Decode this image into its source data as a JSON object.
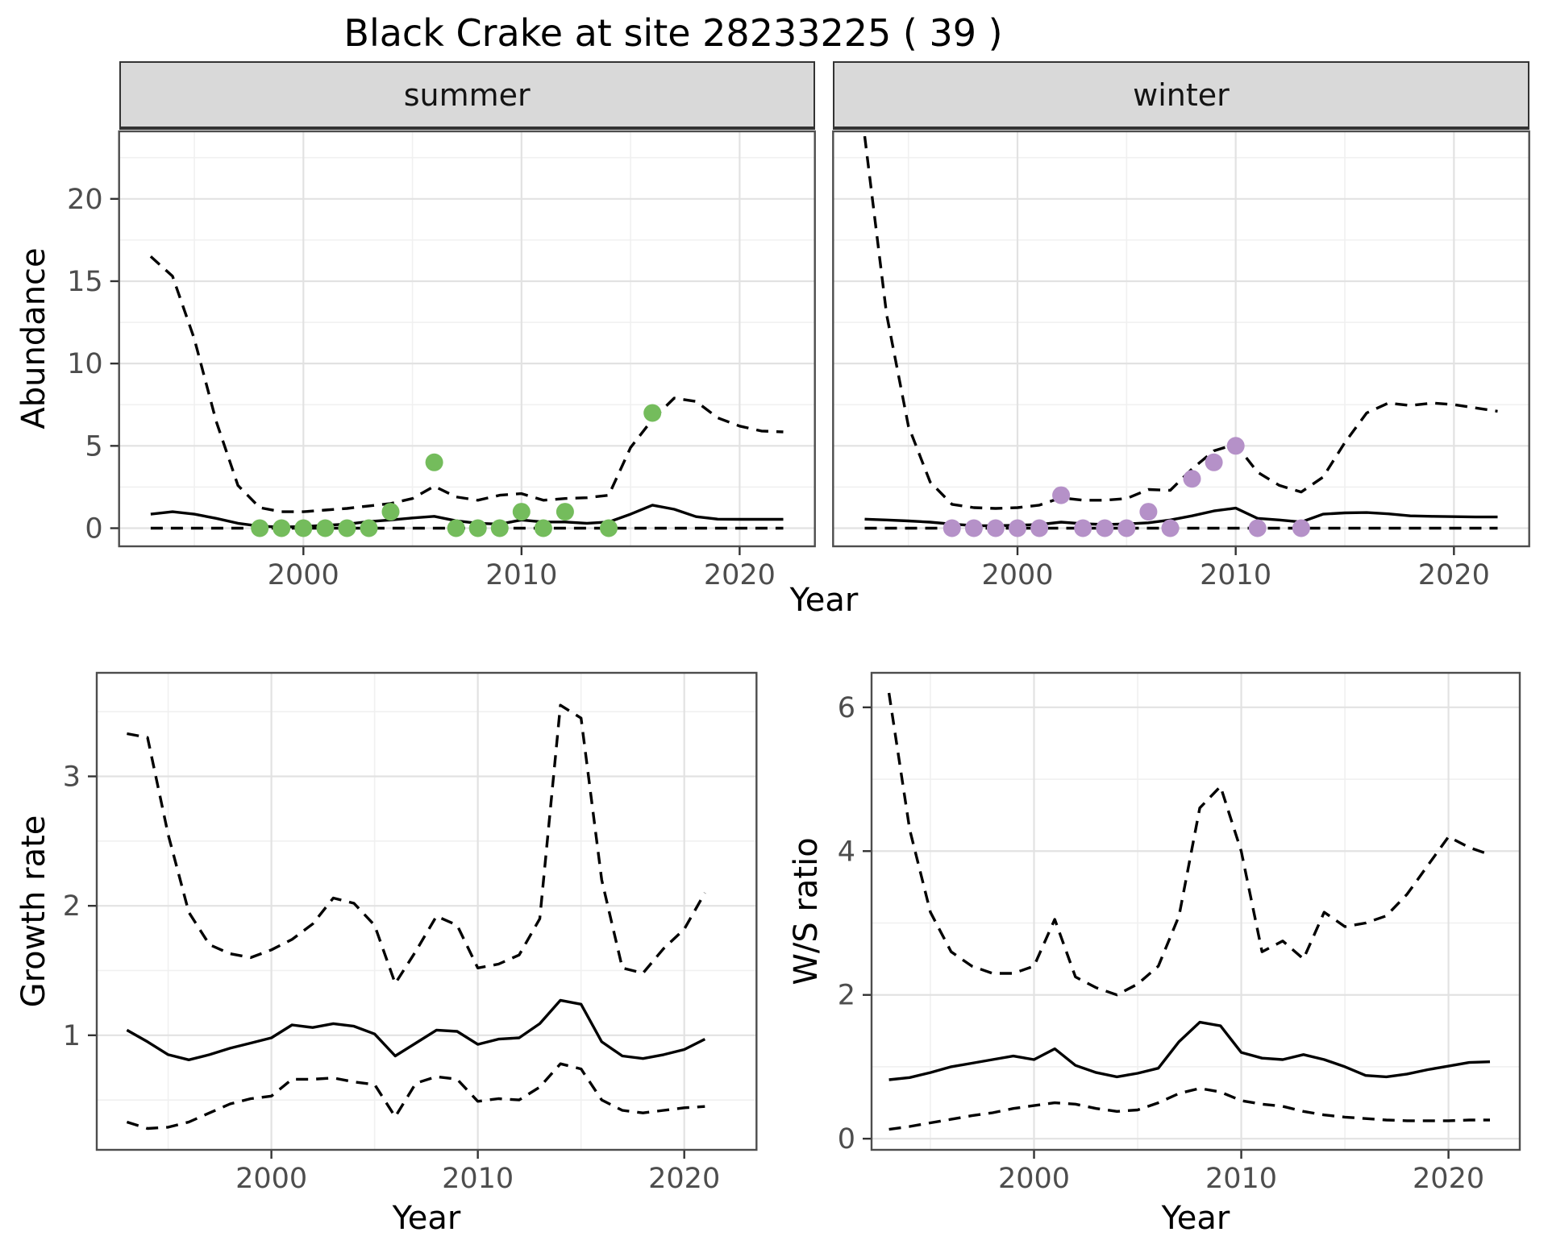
{
  "header": {
    "title": "Black Crake at site 28233225 ( 39 )"
  },
  "axes": {
    "abundance_label": "Abundance",
    "growth_label": "Growth rate",
    "ws_label": "W/S ratio",
    "year_label": "Year"
  },
  "colors": {
    "summer_points": "#74BC5C",
    "winter_points": "#B591C8",
    "line": "#000000",
    "strip_bg": "#d9d9d9",
    "grid_major": "#e2e2e2",
    "grid_minor": "#f0f0f0",
    "panel_border": "#4d4d4d"
  },
  "chart_data": [
    {
      "id": "abundance-summer",
      "type": "line",
      "facet": "summer",
      "ylabel": "Abundance",
      "xlabel": "Year",
      "xlim": [
        1991.55,
        2023.45
      ],
      "ylim": [
        -1.1,
        24.1
      ],
      "x_ticks": [
        2000,
        2010,
        2020
      ],
      "x_minor": [
        1995,
        2005,
        2015
      ],
      "y_ticks": [
        0,
        5,
        10,
        15,
        20
      ],
      "y_minor": [
        2.5,
        7.5,
        12.5,
        17.5,
        22.5
      ],
      "x": [
        1993,
        1994,
        1995,
        1996,
        1997,
        1998,
        1999,
        2000,
        2001,
        2002,
        2003,
        2004,
        2005,
        2006,
        2007,
        2008,
        2009,
        2010,
        2011,
        2012,
        2013,
        2014,
        2015,
        2016,
        2017,
        2018,
        2019,
        2020,
        2021,
        2022
      ],
      "series": [
        {
          "name": "median",
          "style": "solid",
          "values": [
            0.85,
            1.0,
            0.85,
            0.6,
            0.3,
            0.12,
            0.07,
            0.1,
            0.17,
            0.25,
            0.4,
            0.5,
            0.62,
            0.72,
            0.45,
            0.3,
            0.25,
            0.5,
            0.38,
            0.38,
            0.3,
            0.38,
            0.85,
            1.4,
            1.15,
            0.7,
            0.55,
            0.54,
            0.54,
            0.54
          ]
        },
        {
          "name": "upper_ci",
          "style": "dashed",
          "values": [
            16.5,
            15.3,
            11.5,
            6.5,
            2.6,
            1.25,
            1.0,
            1.0,
            1.1,
            1.2,
            1.35,
            1.5,
            1.8,
            2.55,
            1.9,
            1.7,
            2.0,
            2.1,
            1.7,
            1.8,
            1.85,
            2.0,
            4.9,
            6.6,
            7.9,
            7.7,
            6.7,
            6.2,
            5.9,
            5.85
          ]
        },
        {
          "name": "lower_ci",
          "style": "dashed",
          "values": [
            0,
            0,
            0,
            0,
            0,
            0,
            0,
            0,
            0,
            0,
            0,
            0,
            0,
            0,
            0,
            0,
            0,
            0,
            0,
            0,
            0,
            0,
            0,
            0,
            0,
            0,
            0,
            0,
            0,
            0
          ]
        }
      ],
      "points": {
        "name": "observed-counts-summer",
        "color": "#74BC5C",
        "x": [
          1998,
          1999,
          2000,
          2001,
          2002,
          2003,
          2004,
          2006,
          2007,
          2008,
          2009,
          2010,
          2011,
          2012,
          2014,
          2016
        ],
        "y": [
          0,
          0,
          0,
          0,
          0,
          0,
          1,
          4,
          0,
          0,
          0,
          1,
          0,
          1,
          0,
          7
        ]
      }
    },
    {
      "id": "abundance-winter",
      "type": "line",
      "facet": "winter",
      "ylabel": "Abundance",
      "xlabel": "Year",
      "xlim": [
        1991.55,
        2023.45
      ],
      "ylim": [
        -1.1,
        24.1
      ],
      "x_ticks": [
        2000,
        2010,
        2020
      ],
      "x_minor": [
        1995,
        2005,
        2015
      ],
      "y_ticks": [
        0,
        5,
        10,
        15,
        20
      ],
      "y_minor": [
        2.5,
        7.5,
        12.5,
        17.5,
        22.5
      ],
      "x": [
        1993,
        1994,
        1995,
        1996,
        1997,
        1998,
        1999,
        2000,
        2001,
        2002,
        2003,
        2004,
        2005,
        2006,
        2007,
        2008,
        2009,
        2010,
        2011,
        2012,
        2013,
        2014,
        2015,
        2016,
        2017,
        2018,
        2019,
        2020,
        2021,
        2022
      ],
      "series": [
        {
          "name": "median",
          "style": "solid",
          "values": [
            0.55,
            0.5,
            0.44,
            0.37,
            0.25,
            0.16,
            0.15,
            0.18,
            0.22,
            0.37,
            0.27,
            0.22,
            0.26,
            0.33,
            0.5,
            0.75,
            1.05,
            1.22,
            0.6,
            0.5,
            0.38,
            0.85,
            0.93,
            0.95,
            0.87,
            0.75,
            0.72,
            0.7,
            0.68,
            0.68
          ]
        },
        {
          "name": "upper_ci",
          "style": "dashed",
          "values": [
            23.8,
            13.0,
            6.2,
            2.8,
            1.45,
            1.25,
            1.2,
            1.25,
            1.4,
            1.85,
            1.7,
            1.7,
            1.8,
            2.35,
            2.3,
            3.6,
            4.7,
            5.1,
            3.4,
            2.6,
            2.2,
            3.1,
            5.2,
            7.0,
            7.6,
            7.45,
            7.6,
            7.5,
            7.3,
            7.1
          ]
        },
        {
          "name": "lower_ci",
          "style": "dashed",
          "values": [
            0,
            0,
            0,
            0,
            0,
            0,
            0,
            0,
            0,
            0,
            0,
            0,
            0,
            0,
            0,
            0,
            0,
            0,
            0,
            0,
            0,
            0,
            0,
            0,
            0,
            0,
            0,
            0,
            0,
            0
          ]
        }
      ],
      "points": {
        "name": "observed-counts-winter",
        "color": "#B591C8",
        "x": [
          1997,
          1998,
          1999,
          2000,
          2001,
          2002,
          2003,
          2004,
          2005,
          2006,
          2007,
          2008,
          2009,
          2010,
          2011,
          2013
        ],
        "y": [
          0,
          0,
          0,
          0,
          0,
          2,
          0,
          0,
          0,
          1,
          0,
          3,
          4,
          5,
          0,
          0
        ]
      }
    },
    {
      "id": "growth-rate",
      "type": "line",
      "facet": null,
      "ylabel": "Growth rate",
      "xlabel": "Year",
      "xlim": [
        1991.54,
        2023.5
      ],
      "ylim": [
        0.115,
        3.8
      ],
      "x_ticks": [
        2000,
        2010,
        2020
      ],
      "x_minor": [
        1995,
        2005,
        2015
      ],
      "y_ticks": [
        1,
        2,
        3
      ],
      "y_minor": [
        0.5,
        1.5,
        2.5,
        3.5
      ],
      "x": [
        1993,
        1994,
        1995,
        1996,
        1997,
        1998,
        1999,
        2000,
        2001,
        2002,
        2003,
        2004,
        2005,
        2006,
        2007,
        2008,
        2009,
        2010,
        2011,
        2012,
        2013,
        2014,
        2015,
        2016,
        2017,
        2018,
        2019,
        2020,
        2021
      ],
      "series": [
        {
          "name": "median",
          "style": "solid",
          "values": [
            1.04,
            0.95,
            0.85,
            0.81,
            0.85,
            0.9,
            0.94,
            0.98,
            1.08,
            1.06,
            1.09,
            1.07,
            1.01,
            0.84,
            0.94,
            1.04,
            1.03,
            0.93,
            0.97,
            0.98,
            1.09,
            1.27,
            1.24,
            0.95,
            0.84,
            0.82,
            0.85,
            0.89,
            0.97
          ]
        },
        {
          "name": "upper_ci",
          "style": "dashed",
          "values": [
            3.33,
            3.3,
            2.55,
            1.95,
            1.7,
            1.63,
            1.6,
            1.66,
            1.74,
            1.86,
            2.06,
            2.02,
            1.85,
            1.4,
            1.65,
            1.92,
            1.85,
            1.52,
            1.55,
            1.62,
            1.9,
            3.55,
            3.45,
            2.2,
            1.52,
            1.48,
            1.67,
            1.82,
            2.1
          ]
        },
        {
          "name": "lower_ci",
          "style": "dashed",
          "values": [
            0.33,
            0.28,
            0.29,
            0.33,
            0.4,
            0.47,
            0.51,
            0.53,
            0.66,
            0.66,
            0.67,
            0.64,
            0.62,
            0.37,
            0.63,
            0.68,
            0.66,
            0.49,
            0.51,
            0.5,
            0.6,
            0.78,
            0.74,
            0.5,
            0.42,
            0.4,
            0.42,
            0.44,
            0.45
          ]
        }
      ],
      "points": null
    },
    {
      "id": "ws-ratio",
      "type": "line",
      "facet": null,
      "ylabel": "W/S ratio",
      "xlabel": "Year",
      "xlim": [
        1992.16,
        2023.44
      ],
      "ylim": [
        -0.155,
        6.48
      ],
      "x_ticks": [
        2000,
        2010,
        2020
      ],
      "x_minor": [
        1995,
        2005,
        2015
      ],
      "y_ticks": [
        0,
        2,
        4,
        6
      ],
      "y_minor": [
        1,
        3,
        5
      ],
      "x": [
        1993,
        1994,
        1995,
        1996,
        1997,
        1998,
        1999,
        2000,
        2001,
        2002,
        2003,
        2004,
        2005,
        2006,
        2007,
        2008,
        2009,
        2010,
        2011,
        2012,
        2013,
        2014,
        2015,
        2016,
        2017,
        2018,
        2019,
        2020,
        2021,
        2022
      ],
      "series": [
        {
          "name": "median",
          "style": "solid",
          "values": [
            0.82,
            0.85,
            0.92,
            1.0,
            1.05,
            1.1,
            1.15,
            1.1,
            1.25,
            1.02,
            0.92,
            0.86,
            0.91,
            0.98,
            1.35,
            1.62,
            1.57,
            1.2,
            1.12,
            1.1,
            1.17,
            1.1,
            1.0,
            0.88,
            0.86,
            0.9,
            0.96,
            1.01,
            1.06,
            1.07
          ]
        },
        {
          "name": "upper_ci",
          "style": "dashed",
          "values": [
            6.2,
            4.3,
            3.15,
            2.6,
            2.4,
            2.3,
            2.3,
            2.4,
            3.05,
            2.25,
            2.1,
            2.0,
            2.15,
            2.4,
            3.1,
            4.6,
            4.9,
            4.0,
            2.6,
            2.75,
            2.5,
            3.15,
            2.95,
            3.0,
            3.1,
            3.4,
            3.8,
            4.2,
            4.05,
            3.95
          ]
        },
        {
          "name": "lower_ci",
          "style": "dashed",
          "values": [
            0.13,
            0.17,
            0.22,
            0.27,
            0.32,
            0.36,
            0.42,
            0.46,
            0.5,
            0.48,
            0.42,
            0.38,
            0.4,
            0.5,
            0.63,
            0.7,
            0.65,
            0.53,
            0.48,
            0.45,
            0.38,
            0.33,
            0.3,
            0.28,
            0.26,
            0.25,
            0.25,
            0.25,
            0.26,
            0.26
          ]
        }
      ],
      "points": null
    }
  ]
}
